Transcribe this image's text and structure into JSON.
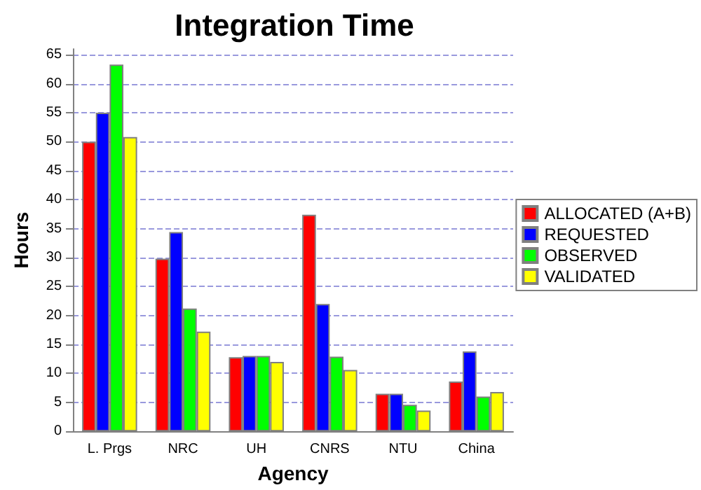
{
  "chart_data": {
    "type": "bar",
    "title": "Integration Time",
    "xlabel": "Agency",
    "ylabel": "Hours",
    "categories": [
      "L. Prgs",
      "NRC",
      "UH",
      "CNRS",
      "NTU",
      "China"
    ],
    "series": [
      {
        "name": "ALLOCATED (A+B)",
        "color": "#ff0000",
        "values": [
          50,
          29.8,
          12.8,
          37.4,
          6.5,
          8.6
        ]
      },
      {
        "name": "REQUESTED",
        "color": "#0000ff",
        "values": [
          55,
          34.4,
          13,
          22,
          6.5,
          13.8
        ]
      },
      {
        "name": "OBSERVED",
        "color": "#00ff00",
        "values": [
          63.3,
          21.2,
          13,
          12.9,
          4.6,
          6
        ]
      },
      {
        "name": "VALIDATED",
        "color": "#ffff00",
        "values": [
          50.8,
          17.2,
          12,
          10.6,
          3.6,
          6.8
        ]
      }
    ],
    "ylim": [
      0,
      66
    ],
    "yticks": [
      0,
      5,
      10,
      15,
      20,
      25,
      30,
      35,
      40,
      45,
      50,
      55,
      60,
      65
    ],
    "grid": "y",
    "legend": "right"
  }
}
